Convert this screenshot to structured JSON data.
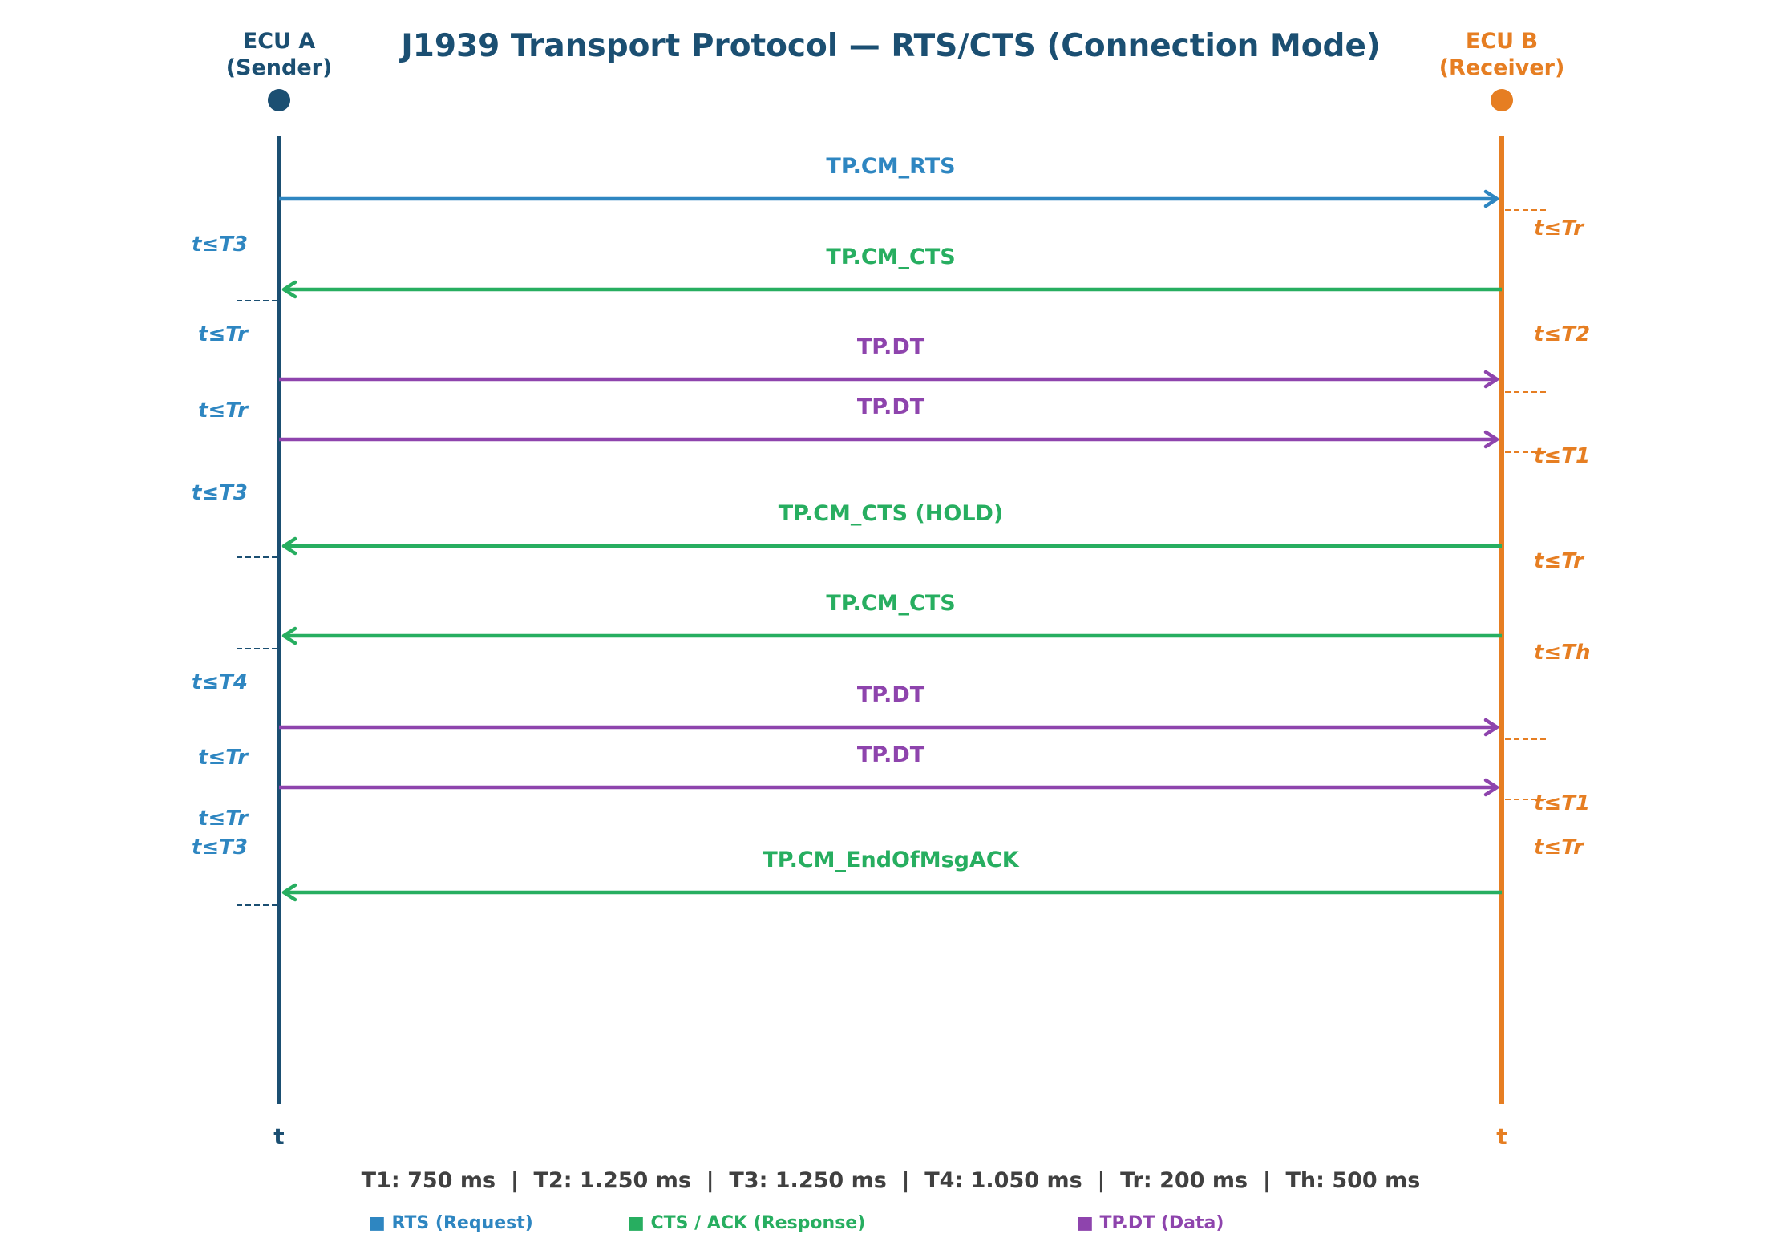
{
  "title": "J1939 Transport Protocol — RTS/CTS (Connection Mode)",
  "colors": {
    "ecu_a": "#1b4f72",
    "ecu_b": "#e67e22",
    "rts": "#2e86c1",
    "cts": "#27ae60",
    "dt": "#8e44ad",
    "footer": "#404040"
  },
  "participants": [
    {
      "name": "ECU A",
      "role": "(Sender)",
      "axis_label": "t"
    },
    {
      "name": "ECU B",
      "role": "(Receiver)",
      "axis_label": "t"
    }
  ],
  "messages": [
    {
      "label": "TP.CM_RTS",
      "direction": "A->B",
      "kind": "rts"
    },
    {
      "label": "TP.CM_CTS",
      "direction": "B->A",
      "kind": "cts"
    },
    {
      "label": "TP.DT",
      "direction": "A->B",
      "kind": "dt"
    },
    {
      "label": "TP.DT",
      "direction": "A->B",
      "kind": "dt"
    },
    {
      "label": "TP.CM_CTS (HOLD)",
      "direction": "B->A",
      "kind": "cts"
    },
    {
      "label": "TP.CM_CTS",
      "direction": "B->A",
      "kind": "cts"
    },
    {
      "label": "TP.DT",
      "direction": "A->B",
      "kind": "dt"
    },
    {
      "label": "TP.DT",
      "direction": "A->B",
      "kind": "dt"
    },
    {
      "label": "TP.CM_EndOfMsgACK",
      "direction": "B->A",
      "kind": "cts"
    }
  ],
  "sender_timeouts": [
    "t≤T3",
    "t≤Tr",
    "t≤Tr",
    "t≤T3",
    "t≤T4",
    "t≤Tr",
    "t≤Tr",
    "t≤T3"
  ],
  "receiver_timeouts": [
    "t≤Tr",
    "t≤T2",
    "t≤T1",
    "t≤Tr",
    "t≤Th",
    "t≤T1",
    "t≤Tr"
  ],
  "footer": "T1: 750 ms  |  T2: 1.250 ms  |  T3: 1.250 ms  |  T4: 1.050 ms  |  Tr: 200 ms  |  Th: 500 ms",
  "legend": [
    {
      "label": "■ RTS (Request)",
      "kind": "rts"
    },
    {
      "label": "■ CTS / ACK (Response)",
      "kind": "cts"
    },
    {
      "label": "■ TP.DT (Data)",
      "kind": "dt"
    }
  ]
}
